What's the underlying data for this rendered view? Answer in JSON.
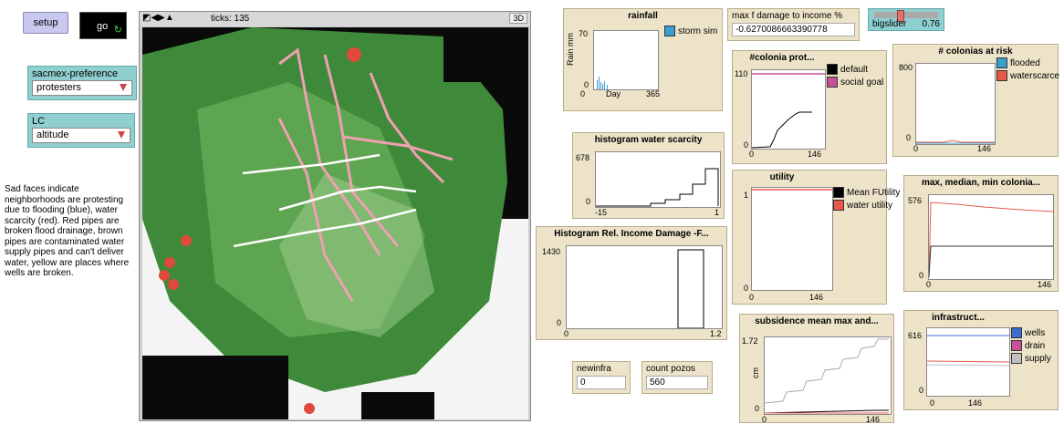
{
  "buttons": {
    "setup": "setup",
    "go": "go"
  },
  "choosers": [
    {
      "label": "sacmex-preference",
      "value": "protesters"
    },
    {
      "label": "LC",
      "value": "altitude"
    }
  ],
  "note": "Sad faces indicate neighborhoods are protesting due to flooding (blue), water scarcity (red). Red pipes are broken flood drainage, brown pipes are contaminated water supply pipes and can't deliver water, yellow are places where wells are broken.",
  "world": {
    "ticks": "ticks: 135",
    "threed": "3D"
  },
  "plots": {
    "rainfall": {
      "title": "rainfall",
      "ymax": "70",
      "ymin": "0",
      "xmin": "0",
      "xlabel": "Day",
      "xmax": "365",
      "ylabel": "Rain mm",
      "legend": [
        "storm sim"
      ]
    },
    "water_scarcity": {
      "title": "histogram water scarcity",
      "ymax": "678",
      "ymin": "0",
      "xmin": "-15",
      "xmax": "1"
    },
    "income_damage": {
      "title": "Histogram Rel. Income Damage -F...",
      "ymax": "1430",
      "ymin": "0",
      "xmin": "0",
      "xmax": "1.2"
    },
    "colonia_prot": {
      "title": "#colonia prot...",
      "ymax": "110",
      "ymin": "0",
      "xmin": "0",
      "xmax": "146",
      "legend": [
        "default",
        "social goal"
      ]
    },
    "utility": {
      "title": "utility",
      "ymax": "1",
      "ymin": "0",
      "xmin": "0",
      "xmax": "146",
      "legend": [
        "Mean FUtility",
        "water utility"
      ]
    },
    "subsidence": {
      "title": "subsidence mean max and...",
      "ymax": "1.72",
      "ymin": "0",
      "xmin": "0",
      "xmax": "146",
      "ylabel": "cm"
    },
    "colonias_risk": {
      "title": "# colonias at risk",
      "ymax": "800",
      "ymin": "0",
      "xmin": "0",
      "xmax": "146",
      "legend": [
        "flooded",
        "waterscarce"
      ]
    },
    "max_median": {
      "title": "max, median, min colonia...",
      "ymax": "576",
      "ymin": "0",
      "xmin": "0",
      "xmax": "146"
    },
    "infrastructure": {
      "title": "infrastruct...",
      "ymax": "616",
      "ymin": "0",
      "xmin": "0",
      "xmax": "146",
      "legend": [
        "wells",
        "drain",
        "supply"
      ]
    }
  },
  "monitors": {
    "max_damage": {
      "label": "max f damage to income %",
      "value": "-0.6270086663390778"
    },
    "newinfra": {
      "label": "newinfra",
      "value": "0"
    },
    "count_pozos": {
      "label": "count pozos",
      "value": "560"
    }
  },
  "slider": {
    "label": "bigslider",
    "value": "0.76",
    "fraction": 0.35
  },
  "colors": {
    "blue": "#3a9fd0",
    "pink": "#c8509a",
    "red": "#e8584a",
    "gray": "#c0c0c0",
    "black": "#000000",
    "pipe": "#f0a0b0"
  }
}
